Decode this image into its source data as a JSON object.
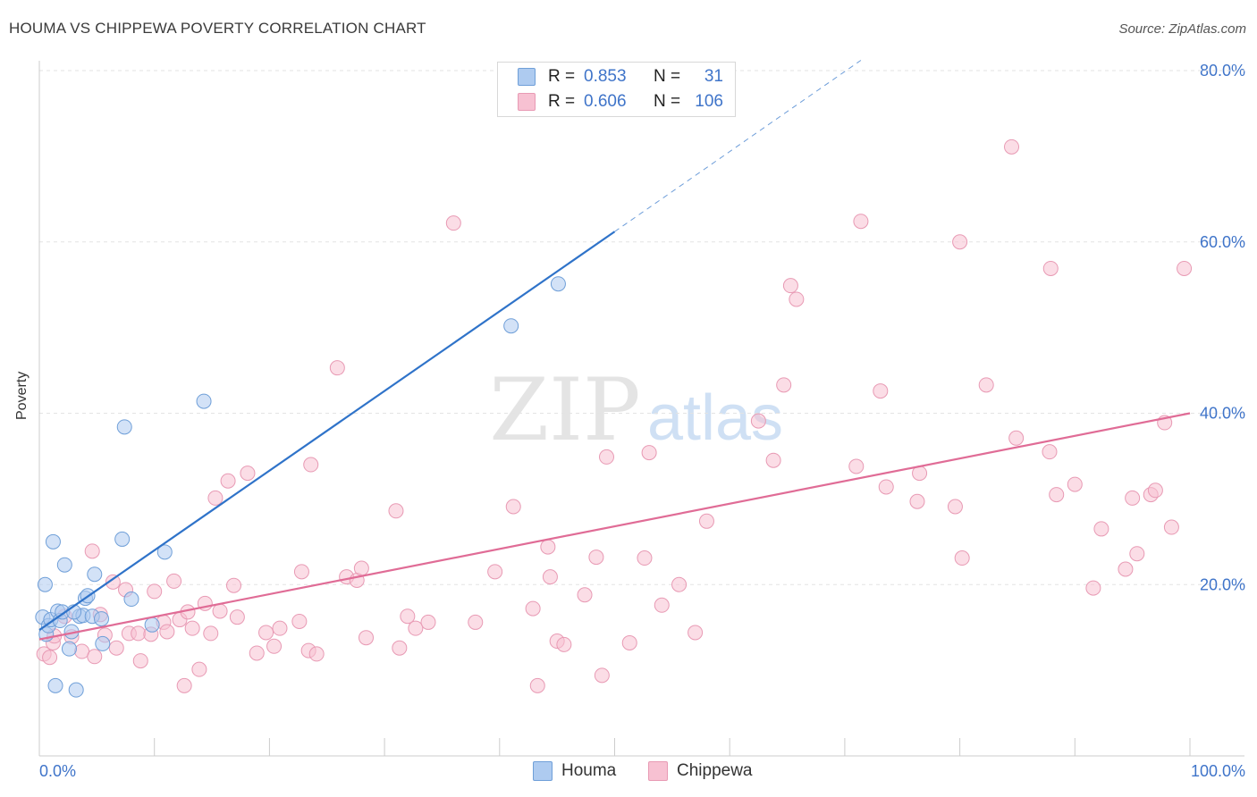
{
  "title": "HOUMA VS CHIPPEWA POVERTY CORRELATION CHART",
  "source": "Source: ZipAtlas.com",
  "watermark": {
    "zip": "ZIP",
    "atlas": "atlas"
  },
  "legend": {
    "rows": [
      {
        "r_label": "R =",
        "r_value": "0.853",
        "n_label": "N =",
        "n_value": "31"
      },
      {
        "r_label": "R =",
        "r_value": "0.606",
        "n_label": "N =",
        "n_value": "106"
      }
    ]
  },
  "colors": {
    "houma_fill": "#aecbf0",
    "houma_stroke": "#6f9fd8",
    "houma_line": "#2f73c9",
    "chippewa_fill": "#f7c1d2",
    "chippewa_stroke": "#e89ab4",
    "chippewa_line": "#e06c96",
    "axis_text": "#3f74c9",
    "grid": "#e3e3e3"
  },
  "chart_data": {
    "type": "scatter",
    "title": "HOUMA VS CHIPPEWA POVERTY CORRELATION CHART",
    "xlabel": "",
    "ylabel": "Poverty",
    "xlim": [
      0,
      100
    ],
    "ylim": [
      0,
      80
    ],
    "x_tick_labels": [
      "0.0%",
      "100.0%"
    ],
    "y_ticks": [
      20,
      40,
      60,
      80
    ],
    "y_tick_labels": [
      "20.0%",
      "40.0%",
      "60.0%",
      "80.0%"
    ],
    "grid": true,
    "series": [
      {
        "name": "Houma",
        "R": 0.853,
        "N": 31,
        "trend": {
          "x0": 0,
          "y0": 14.7,
          "x1": 50,
          "y1": 61.2,
          "dash_x1": 71.4,
          "dash_y1": 81.2
        },
        "points": [
          [
            0.3,
            16.2
          ],
          [
            0.5,
            20.0
          ],
          [
            0.6,
            14.2
          ],
          [
            0.8,
            15.2
          ],
          [
            1.0,
            15.9
          ],
          [
            1.2,
            25.0
          ],
          [
            1.4,
            8.2
          ],
          [
            1.6,
            16.9
          ],
          [
            1.8,
            15.8
          ],
          [
            2.0,
            16.8
          ],
          [
            2.2,
            22.3
          ],
          [
            2.6,
            12.5
          ],
          [
            2.8,
            14.5
          ],
          [
            3.2,
            7.7
          ],
          [
            3.5,
            16.3
          ],
          [
            3.8,
            16.4
          ],
          [
            4.0,
            18.4
          ],
          [
            4.2,
            18.7
          ],
          [
            4.6,
            16.3
          ],
          [
            4.8,
            21.2
          ],
          [
            5.4,
            16.0
          ],
          [
            5.5,
            13.1
          ],
          [
            7.2,
            25.3
          ],
          [
            7.4,
            38.4
          ],
          [
            8.0,
            18.3
          ],
          [
            9.8,
            15.3
          ],
          [
            10.9,
            23.8
          ],
          [
            14.3,
            41.4
          ],
          [
            41.0,
            50.2
          ],
          [
            45.1,
            55.1
          ],
          [
            3.0,
            16.8
          ]
        ]
      },
      {
        "name": "Chippewa",
        "R": 0.606,
        "N": 106,
        "trend": {
          "x0": 0,
          "y0": 13.6,
          "x1": 100,
          "y1": 40.0
        },
        "points": [
          [
            0.4,
            11.9
          ],
          [
            0.9,
            11.5
          ],
          [
            1.2,
            13.2
          ],
          [
            1.3,
            14.0
          ],
          [
            2.2,
            16.3
          ],
          [
            2.8,
            13.9
          ],
          [
            3.7,
            12.2
          ],
          [
            4.6,
            23.9
          ],
          [
            4.8,
            11.6
          ],
          [
            5.3,
            16.5
          ],
          [
            5.7,
            14.1
          ],
          [
            6.4,
            20.3
          ],
          [
            6.7,
            12.6
          ],
          [
            7.5,
            19.4
          ],
          [
            7.8,
            14.3
          ],
          [
            8.6,
            14.3
          ],
          [
            8.8,
            11.1
          ],
          [
            9.7,
            14.2
          ],
          [
            10.0,
            19.2
          ],
          [
            10.8,
            15.6
          ],
          [
            11.1,
            14.5
          ],
          [
            11.7,
            20.4
          ],
          [
            12.2,
            15.9
          ],
          [
            12.6,
            8.2
          ],
          [
            12.9,
            16.8
          ],
          [
            13.3,
            14.9
          ],
          [
            13.9,
            10.1
          ],
          [
            14.4,
            17.8
          ],
          [
            14.9,
            14.3
          ],
          [
            15.3,
            30.1
          ],
          [
            15.7,
            16.9
          ],
          [
            16.4,
            32.1
          ],
          [
            16.9,
            19.9
          ],
          [
            17.2,
            16.2
          ],
          [
            18.1,
            33.0
          ],
          [
            18.9,
            12.0
          ],
          [
            19.7,
            14.4
          ],
          [
            20.4,
            12.8
          ],
          [
            20.9,
            14.9
          ],
          [
            22.6,
            15.7
          ],
          [
            22.8,
            21.5
          ],
          [
            23.4,
            12.3
          ],
          [
            23.6,
            34.0
          ],
          [
            24.1,
            11.9
          ],
          [
            25.9,
            45.3
          ],
          [
            26.7,
            20.9
          ],
          [
            27.6,
            20.5
          ],
          [
            28.0,
            21.9
          ],
          [
            28.4,
            13.8
          ],
          [
            31.0,
            28.6
          ],
          [
            31.3,
            12.6
          ],
          [
            32.0,
            16.3
          ],
          [
            32.7,
            14.9
          ],
          [
            33.8,
            15.6
          ],
          [
            36.0,
            62.2
          ],
          [
            37.9,
            15.6
          ],
          [
            39.6,
            21.5
          ],
          [
            41.2,
            29.1
          ],
          [
            42.9,
            17.2
          ],
          [
            43.3,
            8.2
          ],
          [
            44.2,
            24.4
          ],
          [
            44.4,
            20.9
          ],
          [
            45.0,
            13.4
          ],
          [
            45.6,
            13.0
          ],
          [
            47.4,
            18.8
          ],
          [
            48.4,
            23.2
          ],
          [
            48.9,
            9.4
          ],
          [
            49.3,
            34.9
          ],
          [
            51.3,
            13.2
          ],
          [
            52.6,
            23.1
          ],
          [
            53.0,
            35.4
          ],
          [
            54.1,
            17.6
          ],
          [
            55.6,
            20.0
          ],
          [
            57.0,
            14.4
          ],
          [
            58.0,
            27.4
          ],
          [
            62.5,
            39.1
          ],
          [
            63.8,
            34.5
          ],
          [
            64.7,
            43.3
          ],
          [
            65.3,
            54.9
          ],
          [
            65.8,
            53.3
          ],
          [
            71.0,
            33.8
          ],
          [
            71.4,
            62.4
          ],
          [
            73.1,
            42.6
          ],
          [
            73.6,
            31.4
          ],
          [
            76.3,
            29.7
          ],
          [
            76.5,
            33.0
          ],
          [
            79.6,
            29.1
          ],
          [
            80.0,
            60.0
          ],
          [
            80.2,
            23.1
          ],
          [
            82.3,
            43.3
          ],
          [
            84.5,
            71.1
          ],
          [
            84.9,
            37.1
          ],
          [
            87.8,
            35.5
          ],
          [
            87.9,
            56.9
          ],
          [
            88.4,
            30.5
          ],
          [
            90.0,
            31.7
          ],
          [
            91.6,
            19.6
          ],
          [
            92.3,
            26.5
          ],
          [
            94.4,
            21.8
          ],
          [
            95.0,
            30.1
          ],
          [
            95.4,
            23.6
          ],
          [
            96.6,
            30.5
          ],
          [
            97.0,
            31.0
          ],
          [
            97.8,
            38.9
          ],
          [
            98.4,
            26.7
          ],
          [
            99.5,
            56.9
          ]
        ]
      }
    ]
  }
}
